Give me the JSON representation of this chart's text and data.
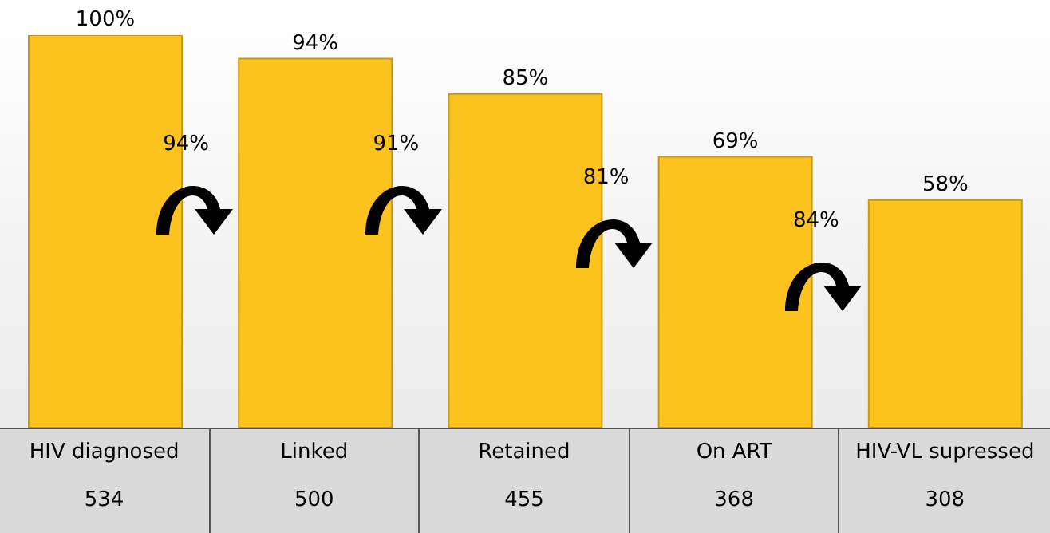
{
  "chart_data": {
    "type": "bar",
    "categories": [
      "HIV diagnosed\n534",
      "Linked\n500",
      "Retained\n455",
      "On ART\n368",
      "HIV-VL supressed\n308"
    ],
    "values": [
      100,
      94,
      85,
      69,
      58
    ],
    "value_labels": [
      "100%",
      "94%",
      "85%",
      "69%",
      "58%"
    ],
    "color": "#fcc31e",
    "ylim": [
      0,
      100
    ],
    "annotations": [
      "94%",
      "91%",
      "81%",
      "84%"
    ]
  }
}
